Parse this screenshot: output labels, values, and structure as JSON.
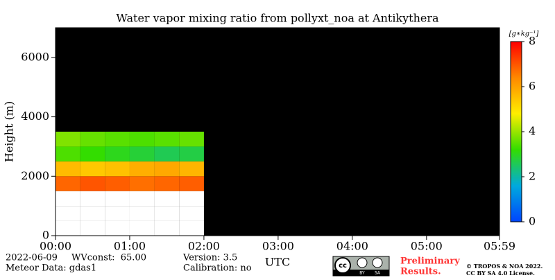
{
  "chart_data": {
    "type": "heatmap",
    "title": "Water vapor mixing ratio from pollyxt_noa at Antikythera",
    "ylabel": "Height (m)",
    "xlabel": "UTC",
    "xlim": [
      0,
      359
    ],
    "xticks": [
      {
        "value": 0,
        "label": "00:00"
      },
      {
        "value": 60,
        "label": "01:00"
      },
      {
        "value": 120,
        "label": "02:00"
      },
      {
        "value": 180,
        "label": "03:00"
      },
      {
        "value": 240,
        "label": "04:00"
      },
      {
        "value": 300,
        "label": "05:00"
      },
      {
        "value": 359,
        "label": "05:59"
      }
    ],
    "ylim": [
      0,
      7000
    ],
    "yticks": [
      0,
      2000,
      4000,
      6000
    ],
    "x_bins": [
      0,
      20,
      40,
      60,
      80,
      100,
      120
    ],
    "y_bins": [
      0,
      500,
      1000,
      1500,
      2000,
      2500,
      3000,
      3500
    ],
    "values": [
      [
        null,
        null,
        null,
        null,
        null,
        null
      ],
      [
        null,
        null,
        null,
        null,
        null,
        null
      ],
      [
        null,
        null,
        null,
        null,
        null,
        null
      ],
      [
        6.8,
        7.0,
        6.9,
        6.7,
        6.8,
        6.9
      ],
      [
        5.6,
        5.4,
        5.5,
        5.8,
        5.9,
        5.7
      ],
      [
        3.4,
        3.2,
        3.0,
        2.8,
        2.6,
        2.7
      ],
      [
        3.8,
        3.6,
        3.5,
        3.4,
        3.5,
        3.6
      ]
    ],
    "background": "#000000",
    "missing_color": "#ffffff",
    "colormap": [
      "#0044ff",
      "#00aadd",
      "#33dd00",
      "#ffee00",
      "#ff8800",
      "#ff0000"
    ],
    "zlim": [
      0,
      8
    ],
    "zticks": [
      0,
      2,
      4,
      6,
      8
    ],
    "colorbar_label": "[g∗kg⁻¹]",
    "annotations": {
      "date": "2022-06-09",
      "wvconst": "WVconst:  65.00",
      "meteor": "Meteor Data: gdas1",
      "version": "Version: 3.5",
      "calibration": "Calibration: no",
      "prelim1": "Preliminary",
      "prelim2": "Results.",
      "copyright": "© TROPOS & NOA 2022.",
      "license": "CC BY SA 4.0 License."
    }
  }
}
